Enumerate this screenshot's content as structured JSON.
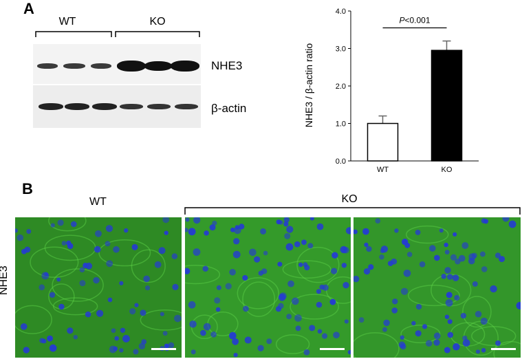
{
  "panels": {
    "a": {
      "label": "A"
    },
    "b": {
      "label": "B"
    }
  },
  "western_blot": {
    "groups": [
      "WT",
      "KO"
    ],
    "rows": [
      {
        "label": "NHE3"
      },
      {
        "label": "β-actin"
      }
    ]
  },
  "microscopy": {
    "row_label": "NHE3",
    "groups": [
      "WT",
      "KO"
    ],
    "colors": {
      "tissue": "#2e8a24",
      "nuclei": "#2438d8",
      "scale_bar": "#ffffff"
    }
  },
  "chart_data": {
    "type": "bar",
    "categories": [
      "WT",
      "KO"
    ],
    "series": [
      {
        "values": [
          1.0,
          2.95
        ],
        "errors": [
          0.2,
          0.25
        ],
        "fills": [
          "#ffffff",
          "#000000"
        ]
      }
    ],
    "ylabel": "NHE3 / β-actin ratio",
    "ylim": [
      0,
      4
    ],
    "yticks": [
      "0.0",
      "1.0",
      "2.0",
      "3.0",
      "4.0"
    ],
    "annotation": {
      "text": "P<0.001",
      "italic_part": "P",
      "between": [
        "WT",
        "KO"
      ]
    },
    "grid": false
  }
}
